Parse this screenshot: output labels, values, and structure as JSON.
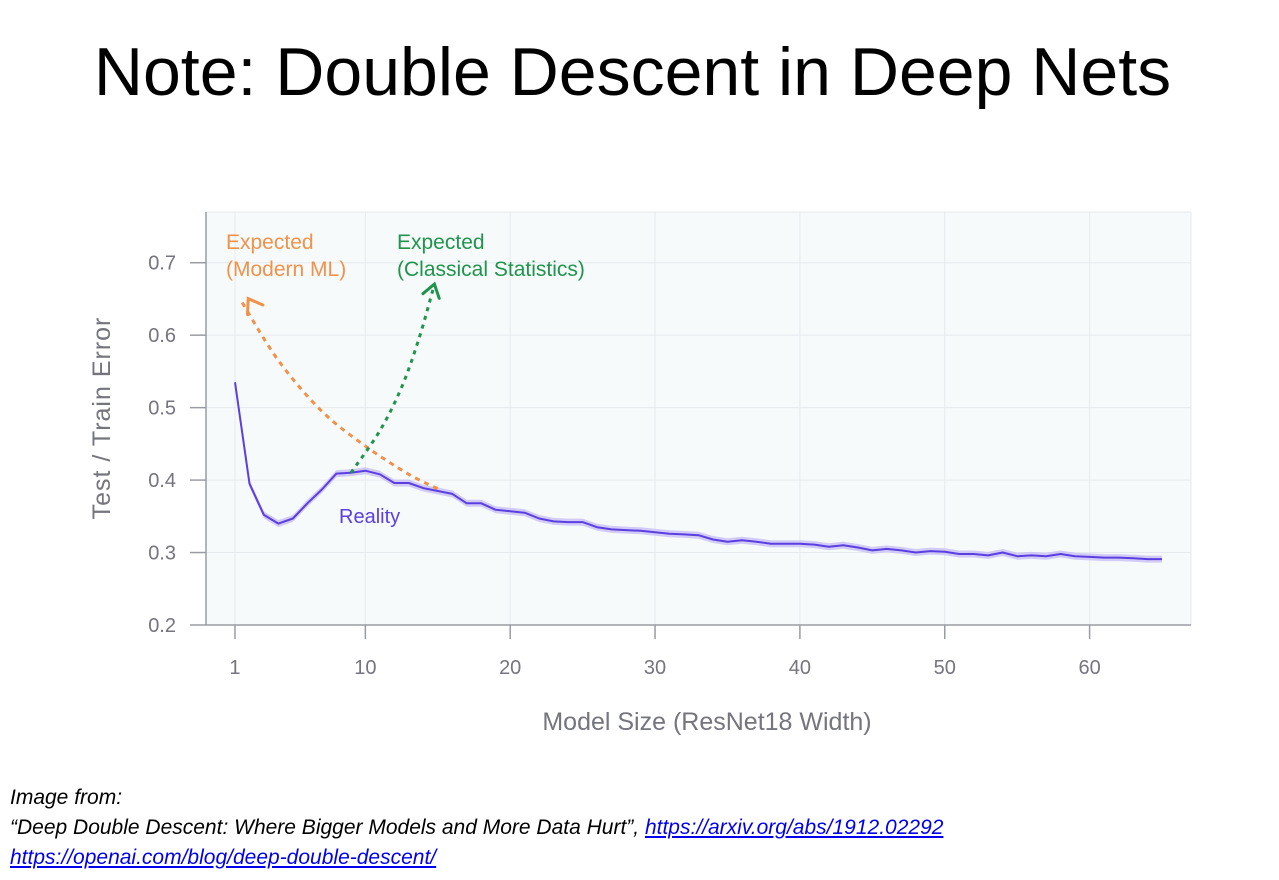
{
  "slide": {
    "title": "Note: Double Descent in Deep Nets"
  },
  "source": {
    "label": "Image from:",
    "paper_title": "“Deep Double Descent: Where Bigger Models and More Data Hurt”, ",
    "link1": "https://arxiv.org/abs/1912.02292",
    "link2": "https://openai.com/blog/deep-double-descent/"
  },
  "colors": {
    "reality": "#5b3fe0",
    "reality_band": "#c9bff5",
    "modern_ml": "#f0924a",
    "classical": "#20944c",
    "plot_bg": "#f6fafb",
    "grid": "#e6eaee",
    "axis_text": "#74757d"
  },
  "chart_data": {
    "type": "line",
    "xlabel": "Model Size (ResNet18 Width)",
    "ylabel": "Test / Train Error",
    "xlim": [
      -1,
      67
    ],
    "ylim": [
      0.2,
      0.77
    ],
    "xticks": [
      "1",
      "10",
      "20",
      "30",
      "40",
      "50",
      "60"
    ],
    "xtick_values": [
      1,
      10,
      20,
      30,
      40,
      50,
      60
    ],
    "yticks": [
      "0.2",
      "0.3",
      "0.4",
      "0.5",
      "0.6",
      "0.7"
    ],
    "ytick_values": [
      0.2,
      0.3,
      0.4,
      0.5,
      0.6,
      0.7
    ],
    "grid": true,
    "annotations": {
      "reality": "Reality",
      "modern_line1": "Expected",
      "modern_line2": "(Modern ML)",
      "classical_line1": "Expected",
      "classical_line2": "(Classical Statistics)"
    },
    "series": [
      {
        "key": "reality",
        "style": "solid",
        "x": [
          1,
          2,
          3,
          4,
          5,
          6,
          7,
          8,
          9,
          10,
          11,
          12,
          13,
          14,
          15,
          16,
          17,
          18,
          19,
          20,
          21,
          22,
          23,
          24,
          25,
          26,
          27,
          28,
          29,
          30,
          31,
          32,
          33,
          34,
          35,
          36,
          37,
          38,
          39,
          40,
          41,
          42,
          43,
          44,
          45,
          46,
          47,
          48,
          49,
          50,
          51,
          52,
          53,
          54,
          55,
          56,
          57,
          58,
          59,
          60,
          61,
          62,
          63,
          64,
          65
        ],
        "y": [
          0.535,
          0.395,
          0.352,
          0.34,
          0.347,
          0.368,
          0.387,
          0.409,
          0.41,
          0.413,
          0.408,
          0.396,
          0.396,
          0.389,
          0.385,
          0.381,
          0.368,
          0.368,
          0.359,
          0.357,
          0.355,
          0.347,
          0.343,
          0.342,
          0.342,
          0.335,
          0.332,
          0.331,
          0.33,
          0.328,
          0.326,
          0.325,
          0.324,
          0.318,
          0.315,
          0.317,
          0.315,
          0.312,
          0.312,
          0.312,
          0.311,
          0.308,
          0.31,
          0.307,
          0.303,
          0.305,
          0.303,
          0.3,
          0.302,
          0.301,
          0.298,
          0.298,
          0.296,
          0.3,
          0.295,
          0.296,
          0.295,
          0.298,
          0.295,
          0.294,
          0.293,
          0.293,
          0.292,
          0.291,
          0.291
        ]
      },
      {
        "key": "modern_ml",
        "style": "dotted-arrow",
        "x": [
          1.5,
          4,
          7,
          10,
          13,
          15
        ],
        "y": [
          0.645,
          0.565,
          0.495,
          0.447,
          0.408,
          0.388
        ]
      },
      {
        "key": "classical",
        "style": "dotted-arrow",
        "x": [
          9,
          11,
          12.5,
          13.7,
          14.7
        ],
        "y": [
          0.41,
          0.468,
          0.528,
          0.595,
          0.665
        ]
      }
    ]
  }
}
